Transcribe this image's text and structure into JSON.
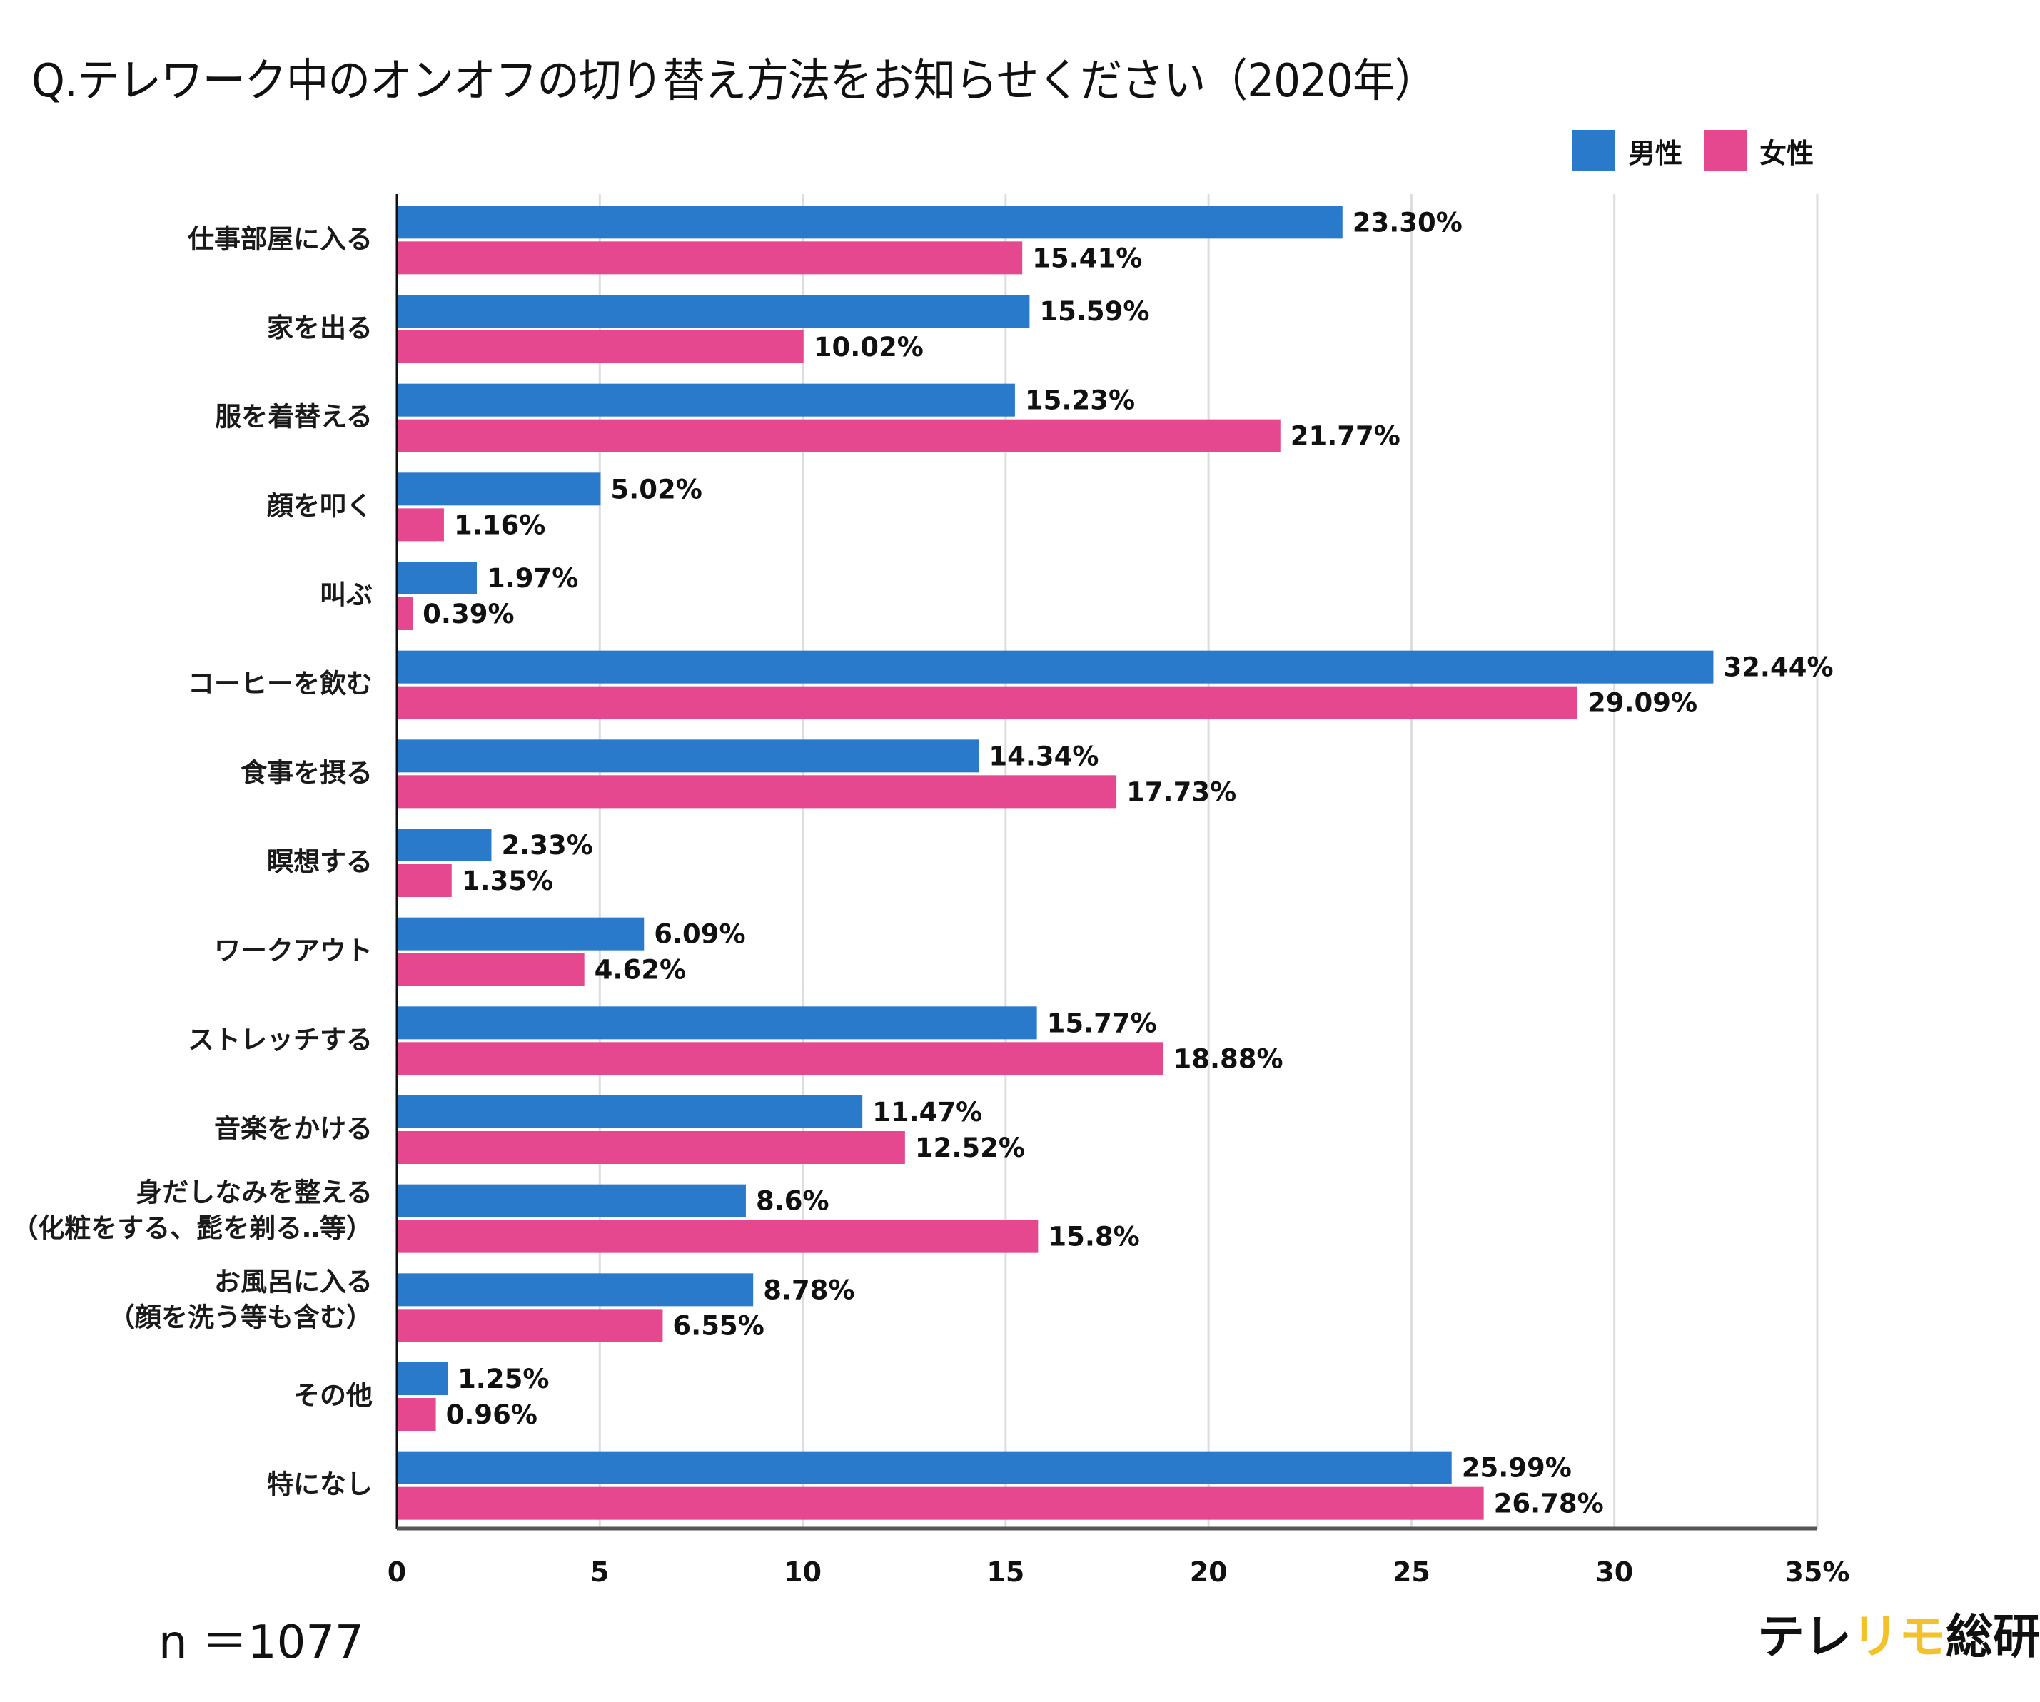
{
  "title": "Q.テレワーク中のオンオフの切り替え方法をお知らせください（2020年）",
  "legend": [
    {
      "name": "男性",
      "color": "#2a7acb"
    },
    {
      "name": "女性",
      "color": "#e5488f"
    }
  ],
  "sample_size": "n ＝1077",
  "logo": {
    "part1": "テレ",
    "part2": "リモ",
    "part3": "総研"
  },
  "chart_data": {
    "type": "bar",
    "orientation": "horizontal",
    "title": "Q.テレワーク中のオンオフの切り替え方法をお知らせください（2020年）",
    "xlabel": "",
    "ylabel": "",
    "xlim": [
      0,
      35
    ],
    "x_ticks": [
      0,
      5,
      10,
      15,
      20,
      25,
      30,
      35
    ],
    "x_tick_labels": [
      "0",
      "5",
      "10",
      "15",
      "20",
      "25",
      "30",
      "35%"
    ],
    "grid": true,
    "legend_position": "top-right",
    "categories": [
      [
        "仕事部屋に入る"
      ],
      [
        "家を出る"
      ],
      [
        "服を着替える"
      ],
      [
        "顔を叩く"
      ],
      [
        "叫ぶ"
      ],
      [
        "コーヒーを飲む"
      ],
      [
        "食事を摂る"
      ],
      [
        "瞑想する"
      ],
      [
        "ワークアウト"
      ],
      [
        "ストレッチする"
      ],
      [
        "音楽をかける"
      ],
      [
        "身だしなみを整える",
        "（化粧をする、髭を剃る‥等）"
      ],
      [
        "お風呂に入る",
        "（顔を洗う等も含む）"
      ],
      [
        "その他"
      ],
      [
        "特になし"
      ]
    ],
    "series": [
      {
        "name": "男性",
        "color": "#2a7acb",
        "values": [
          23.3,
          15.59,
          15.23,
          5.02,
          1.97,
          32.44,
          14.34,
          2.33,
          6.09,
          15.77,
          11.47,
          8.6,
          8.78,
          1.25,
          25.99
        ],
        "labels": [
          "23.30%",
          "15.59%",
          "15.23%",
          "5.02%",
          "1.97%",
          "32.44%",
          "14.34%",
          "2.33%",
          "6.09%",
          "15.77%",
          "11.47%",
          "8.6%",
          "8.78%",
          "1.25%",
          "25.99%"
        ]
      },
      {
        "name": "女性",
        "color": "#e5488f",
        "values": [
          15.41,
          10.02,
          21.77,
          1.16,
          0.39,
          29.09,
          17.73,
          1.35,
          4.62,
          18.88,
          12.52,
          15.8,
          6.55,
          0.96,
          26.78
        ],
        "labels": [
          "15.41%",
          "10.02%",
          "21.77%",
          "1.16%",
          "0.39%",
          "29.09%",
          "17.73%",
          "1.35%",
          "4.62%",
          "18.88%",
          "12.52%",
          "15.8%",
          "6.55%",
          "0.96%",
          "26.78%"
        ]
      }
    ]
  }
}
